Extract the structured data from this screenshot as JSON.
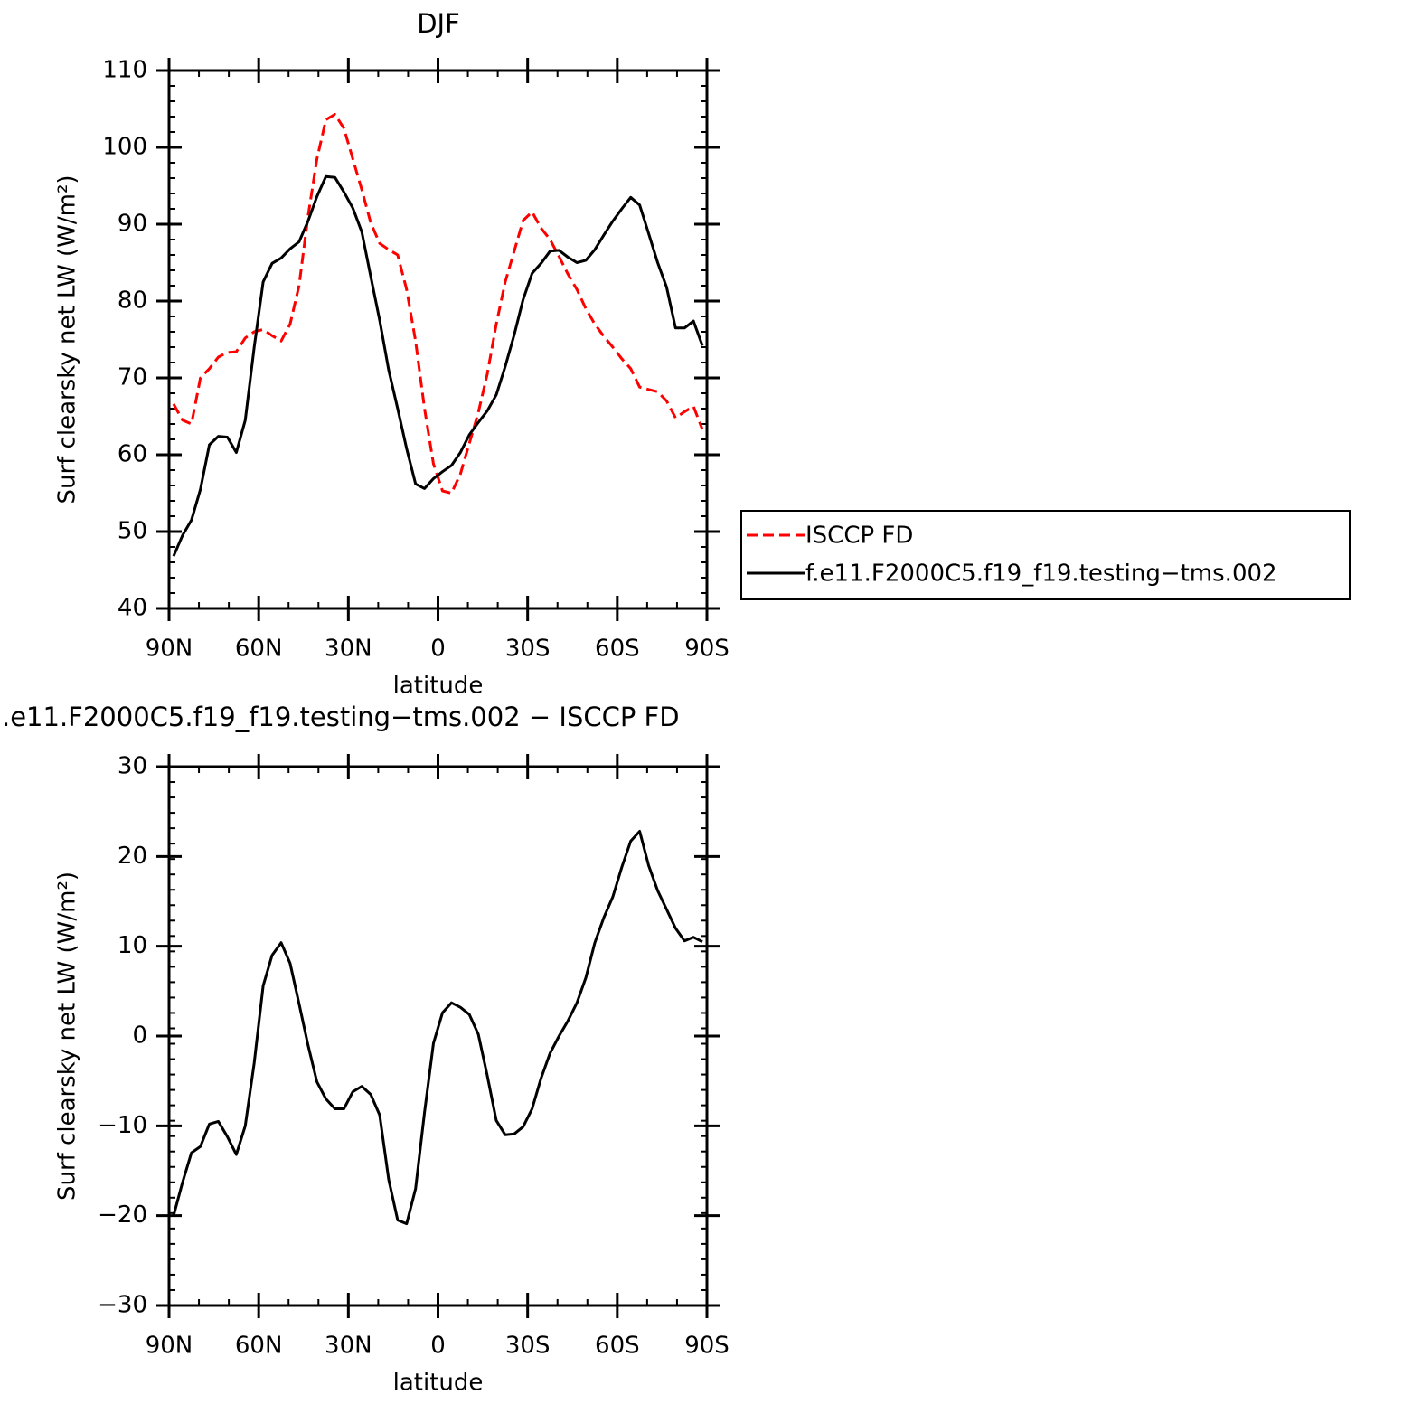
{
  "chart_data": [
    {
      "type": "line",
      "title": "DJF",
      "xlabel": "latitude",
      "ylabel": "Surf clearsky net LW (W/m²)",
      "x": [
        88.5,
        85.5,
        82.5,
        79.5,
        76.5,
        73.5,
        70.5,
        67.5,
        64.5,
        61.5,
        58.5,
        55.5,
        52.5,
        49.5,
        46.5,
        43.5,
        40.5,
        37.5,
        34.5,
        31.5,
        28.5,
        25.5,
        22.5,
        19.5,
        16.5,
        13.5,
        10.5,
        7.5,
        4.5,
        1.5,
        -1.5,
        -4.5,
        -7.5,
        -10.5,
        -13.5,
        -16.5,
        -19.5,
        -22.5,
        -25.5,
        -28.5,
        -31.5,
        -34.5,
        -37.5,
        -40.5,
        -43.5,
        -46.5,
        -49.5,
        -52.5,
        -55.5,
        -58.5,
        -61.5,
        -64.5,
        -67.5,
        -70.5,
        -73.5,
        -76.5,
        -79.5,
        -82.5,
        -85.5,
        -88.5
      ],
      "series": [
        {
          "name": "ISCCP FD",
          "color": "#ff0000",
          "line_style": "dashed",
          "values": [
            66.6,
            64.5,
            64.0,
            70,
            71.2,
            72.7,
            73.3,
            73.4,
            75.2,
            76,
            76.3,
            75.5,
            74.8,
            77,
            82,
            91,
            98.5,
            103.6,
            104.3,
            102.5,
            98.5,
            94.5,
            90.2,
            87.5,
            86.7,
            86,
            81.5,
            74.8,
            66,
            58.8,
            55.3,
            55,
            57.5,
            61.5,
            65.5,
            70.5,
            77,
            82.5,
            86.5,
            90.5,
            91.6,
            89.5,
            88,
            85.8,
            83.5,
            81.5,
            79,
            77,
            75.4,
            74,
            72.5,
            71.2,
            68.8,
            68.5,
            68.2,
            67,
            64.8,
            65.6,
            66.3,
            63.3
          ]
        },
        {
          "name": "f.e11.F2000C5.f19_f19.testing−tms.002",
          "color": "#000000",
          "line_style": "solid",
          "values": [
            46.8,
            49.5,
            51.5,
            55.5,
            61.3,
            62.4,
            62.3,
            60.3,
            64.5,
            74,
            82.5,
            84.9,
            85.6,
            86.8,
            87.7,
            90.4,
            93.6,
            96.2,
            96.1,
            94.2,
            92.1,
            89,
            83.2,
            77.5,
            71,
            66,
            60.8,
            56.2,
            55.6,
            56.9,
            57.8,
            58.6,
            60.3,
            62.6,
            64.2,
            65.7,
            67.8,
            71.5,
            75.6,
            80.2,
            83.6,
            84.9,
            86.5,
            86.6,
            85.7,
            85,
            85.3,
            86.7,
            88.6,
            90.4,
            92,
            93.5,
            92.5,
            88.8,
            85,
            81.8,
            76.5,
            76.5,
            77.4,
            74.2
          ]
        }
      ],
      "xlim": [
        90,
        -90
      ],
      "xticks": [
        {
          "value": 90,
          "label": "90N"
        },
        {
          "value": 60,
          "label": "60N"
        },
        {
          "value": 30,
          "label": "30N"
        },
        0,
        {
          "value": -30,
          "label": "30S"
        },
        {
          "value": -60,
          "label": "60S"
        },
        {
          "value": -90,
          "label": "90S"
        }
      ],
      "ylim": [
        40,
        110
      ],
      "yticks": [
        40,
        50,
        60,
        70,
        80,
        90,
        100,
        110
      ],
      "legend": "right"
    },
    {
      "type": "line",
      "title": ".e11.F2000C5.f19_f19.testing−tms.002 − ISCCP FD",
      "xlabel": "latitude",
      "ylabel": "Surf clearsky net LW (W/m²)",
      "x": [
        88.5,
        85.5,
        82.5,
        79.5,
        76.5,
        73.5,
        70.5,
        67.5,
        64.5,
        61.5,
        58.5,
        55.5,
        52.5,
        49.5,
        46.5,
        43.5,
        40.5,
        37.5,
        34.5,
        31.5,
        28.5,
        25.5,
        22.5,
        19.5,
        16.5,
        13.5,
        10.5,
        7.5,
        4.5,
        1.5,
        -1.5,
        -4.5,
        -7.5,
        -10.5,
        -13.5,
        -16.5,
        -19.5,
        -22.5,
        -25.5,
        -28.5,
        -31.5,
        -34.5,
        -37.5,
        -40.5,
        -43.5,
        -46.5,
        -49.5,
        -52.5,
        -55.5,
        -58.5,
        -61.5,
        -64.5,
        -67.5,
        -70.5,
        -73.5,
        -76.5,
        -79.5,
        -82.5,
        -85.5,
        -88.5
      ],
      "series": [
        {
          "color": "#000000",
          "line_style": "solid",
          "values": [
            -20,
            -16.3,
            -13,
            -12.3,
            -9.8,
            -9.5,
            -11.2,
            -13.2,
            -10,
            -3,
            5.6,
            9,
            10.4,
            8.1,
            3.6,
            -1,
            -5.1,
            -7,
            -8.1,
            -8.1,
            -6.2,
            -5.6,
            -6.5,
            -8.8,
            -16,
            -20.5,
            -20.9,
            -17,
            -8.5,
            -0.8,
            2.6,
            3.7,
            3.2,
            2.4,
            0.2,
            -4.4,
            -9.4,
            -11,
            -10.9,
            -10.1,
            -8.1,
            -4.7,
            -1.9,
            0,
            1.7,
            3.7,
            6.5,
            10.4,
            13.2,
            15.5,
            18.8,
            21.7,
            22.8,
            19,
            16.2,
            14.1,
            12,
            10.6,
            11,
            10.5
          ]
        }
      ],
      "xlim": [
        90,
        -90
      ],
      "xticks": [
        {
          "value": 90,
          "label": "90N"
        },
        {
          "value": 60,
          "label": "60N"
        },
        {
          "value": 30,
          "label": "30N"
        },
        0,
        {
          "value": -30,
          "label": "30S"
        },
        {
          "value": -60,
          "label": "60S"
        },
        {
          "value": -90,
          "label": "90S"
        }
      ],
      "ylim": [
        -30,
        30
      ],
      "yticks": [
        {
          "value": -30,
          "label": "−30"
        },
        {
          "value": -20,
          "label": "−20"
        },
        {
          "value": -10,
          "label": "−10"
        },
        0,
        10,
        20,
        30
      ]
    }
  ]
}
